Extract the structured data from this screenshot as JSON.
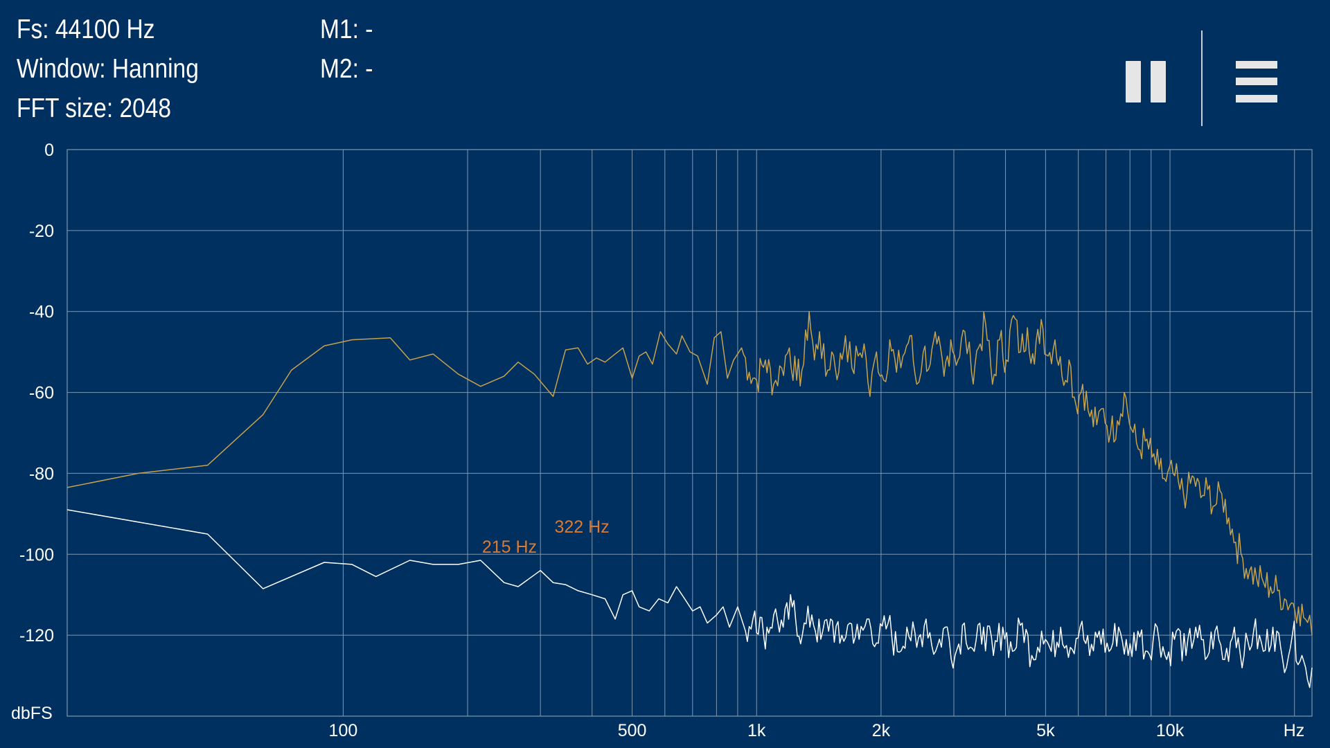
{
  "info": {
    "fs": "Fs: 44100 Hz",
    "window": "Window: Hanning",
    "fft_size": "FFT size: 2048",
    "m1": "M1: -",
    "m2": "M2: -"
  },
  "controls": {
    "pause_icon": "pause-icon",
    "menu_icon": "hamburger-menu-icon"
  },
  "colors": {
    "background": "#00305f",
    "grid": "#7f97b0",
    "series_spectrum": "#c8a24c",
    "series_floor": "#ffffff",
    "marker_label": "#d97a35"
  },
  "chart_data": {
    "type": "line",
    "xscale": "log",
    "xlim": [
      21.5,
      22050
    ],
    "ylim": [
      -140,
      0
    ],
    "ylabel": "dbFS",
    "xlabel": "Hz",
    "y_ticks": [
      {
        "value": 0,
        "label": "0"
      },
      {
        "value": -20,
        "label": "-20"
      },
      {
        "value": -40,
        "label": "-40"
      },
      {
        "value": -60,
        "label": "-60"
      },
      {
        "value": -80,
        "label": "-80"
      },
      {
        "value": -100,
        "label": "-100"
      },
      {
        "value": -120,
        "label": "-120"
      }
    ],
    "x_tick_labels": [
      {
        "value": 100,
        "label": "100"
      },
      {
        "value": 500,
        "label": "500"
      },
      {
        "value": 1000,
        "label": "1k"
      },
      {
        "value": 2000,
        "label": "2k"
      },
      {
        "value": 5000,
        "label": "5k"
      },
      {
        "value": 10000,
        "label": "10k"
      }
    ],
    "x_gridlines": [
      100,
      200,
      300,
      400,
      500,
      600,
      700,
      800,
      900,
      1000,
      2000,
      3000,
      4000,
      5000,
      6000,
      7000,
      8000,
      9000,
      10000,
      20000
    ],
    "markers": [
      {
        "label": "215 Hz",
        "x": 215,
        "y": -101
      },
      {
        "label": "322 Hz",
        "x": 322,
        "y": -96
      }
    ],
    "series": [
      {
        "color": "#c8a24c",
        "points": [
          [
            21.5,
            -83.5
          ],
          [
            32,
            -80
          ],
          [
            47,
            -78
          ],
          [
            64,
            -65.5
          ],
          [
            75,
            -54.5
          ],
          [
            90,
            -48.5
          ],
          [
            105,
            -47
          ],
          [
            130,
            -46.5
          ],
          [
            145,
            -52
          ],
          [
            165,
            -50.5
          ],
          [
            190,
            -55.5
          ],
          [
            215,
            -58.5
          ],
          [
            245,
            -56
          ],
          [
            265,
            -52.5
          ],
          [
            290,
            -55.5
          ],
          [
            322,
            -61
          ],
          [
            345,
            -49.5
          ],
          [
            370,
            -49
          ],
          [
            390,
            -53
          ],
          [
            410,
            -51.5
          ],
          [
            430,
            -52.5
          ],
          [
            455,
            -50.5
          ],
          [
            475,
            -49
          ],
          [
            500,
            -56.5
          ],
          [
            520,
            -51
          ],
          [
            540,
            -50
          ],
          [
            560,
            -53
          ],
          [
            585,
            -45
          ],
          [
            610,
            -48
          ],
          [
            640,
            -50.5
          ],
          [
            660,
            -46
          ],
          [
            690,
            -50
          ],
          [
            720,
            -51
          ],
          [
            760,
            -58
          ],
          [
            790,
            -46.5
          ],
          [
            820,
            -45
          ],
          [
            850,
            -56.5
          ],
          [
            880,
            -52
          ],
          [
            920,
            -49
          ],
          [
            960,
            -55
          ],
          [
            1000,
            -57
          ],
          [
            1050,
            -52
          ],
          [
            1100,
            -58
          ],
          [
            1150,
            -54
          ],
          [
            1200,
            -49
          ],
          [
            1250,
            -57
          ],
          [
            1300,
            -53
          ],
          [
            1340,
            -40
          ],
          [
            1380,
            -52
          ],
          [
            1420,
            -45
          ],
          [
            1470,
            -56
          ],
          [
            1520,
            -50
          ],
          [
            1580,
            -55
          ],
          [
            1640,
            -46
          ],
          [
            1700,
            -54
          ],
          [
            1760,
            -51
          ],
          [
            1820,
            -48
          ],
          [
            1880,
            -61
          ],
          [
            1950,
            -50
          ],
          [
            2030,
            -57
          ],
          [
            2100,
            -47
          ],
          [
            2180,
            -55
          ],
          [
            2260,
            -51
          ],
          [
            2350,
            -46
          ],
          [
            2440,
            -58
          ],
          [
            2530,
            -50
          ],
          [
            2630,
            -53
          ],
          [
            2730,
            -48
          ],
          [
            2840,
            -56
          ],
          [
            2950,
            -47
          ],
          [
            3070,
            -52
          ],
          [
            3190,
            -45
          ],
          [
            3310,
            -55
          ],
          [
            3440,
            -49
          ],
          [
            3580,
            -43
          ],
          [
            3720,
            -58
          ],
          [
            3870,
            -47
          ],
          [
            4020,
            -52
          ],
          [
            4180,
            -41
          ],
          [
            4350,
            -50
          ],
          [
            4520,
            -44
          ],
          [
            4700,
            -53
          ],
          [
            4880,
            -42
          ],
          [
            5070,
            -51
          ],
          [
            5270,
            -47
          ],
          [
            5480,
            -56
          ],
          [
            5700,
            -52
          ],
          [
            5920,
            -63
          ],
          [
            6150,
            -58
          ],
          [
            6400,
            -66
          ],
          [
            6650,
            -68
          ],
          [
            6900,
            -64
          ],
          [
            7180,
            -70
          ],
          [
            7460,
            -67
          ],
          [
            7750,
            -60
          ],
          [
            8060,
            -69
          ],
          [
            8380,
            -74
          ],
          [
            8710,
            -72
          ],
          [
            9050,
            -76
          ],
          [
            9410,
            -79
          ],
          [
            9780,
            -82
          ],
          [
            10170,
            -80
          ],
          [
            10570,
            -84
          ],
          [
            10990,
            -85
          ],
          [
            11420,
            -81
          ],
          [
            11870,
            -86
          ],
          [
            12340,
            -84
          ],
          [
            12830,
            -88
          ],
          [
            13340,
            -85
          ],
          [
            13870,
            -91
          ],
          [
            14420,
            -97
          ],
          [
            14990,
            -101
          ],
          [
            15580,
            -104
          ],
          [
            16200,
            -106
          ],
          [
            16840,
            -107
          ],
          [
            17500,
            -108
          ],
          [
            18200,
            -109
          ],
          [
            18920,
            -111
          ],
          [
            19670,
            -112
          ],
          [
            20450,
            -113
          ],
          [
            21260,
            -116
          ],
          [
            22050,
            -120
          ]
        ]
      },
      {
        "color": "#ffffff",
        "points": [
          [
            21.5,
            -89
          ],
          [
            47,
            -95
          ],
          [
            64,
            -108.5
          ],
          [
            90,
            -102
          ],
          [
            105,
            -102.5
          ],
          [
            120,
            -105.5
          ],
          [
            145,
            -101.5
          ],
          [
            165,
            -102.5
          ],
          [
            190,
            -102.5
          ],
          [
            215,
            -101.5
          ],
          [
            245,
            -107
          ],
          [
            265,
            -108
          ],
          [
            300,
            -104
          ],
          [
            322,
            -107
          ],
          [
            345,
            -107.5
          ],
          [
            370,
            -109
          ],
          [
            400,
            -110
          ],
          [
            430,
            -111
          ],
          [
            455,
            -116
          ],
          [
            475,
            -110
          ],
          [
            500,
            -109
          ],
          [
            520,
            -113
          ],
          [
            550,
            -114
          ],
          [
            580,
            -111
          ],
          [
            610,
            -112
          ],
          [
            640,
            -108
          ],
          [
            670,
            -111
          ],
          [
            700,
            -114
          ],
          [
            730,
            -113
          ],
          [
            760,
            -117
          ],
          [
            800,
            -115
          ],
          [
            830,
            -113
          ],
          [
            860,
            -118
          ],
          [
            900,
            -113
          ],
          [
            940,
            -119
          ],
          [
            990,
            -114
          ],
          [
            1040,
            -120
          ],
          [
            1100,
            -115
          ],
          [
            1160,
            -118
          ],
          [
            1220,
            -113
          ],
          [
            1290,
            -120
          ],
          [
            1360,
            -115
          ],
          [
            1430,
            -121
          ],
          [
            1510,
            -116
          ],
          [
            1590,
            -122
          ],
          [
            1680,
            -117
          ],
          [
            1770,
            -121
          ],
          [
            1870,
            -116
          ],
          [
            1970,
            -122
          ],
          [
            2080,
            -117
          ],
          [
            2190,
            -124
          ],
          [
            2310,
            -118
          ],
          [
            2440,
            -123
          ],
          [
            2570,
            -116
          ],
          [
            2710,
            -124
          ],
          [
            2860,
            -118
          ],
          [
            3020,
            -125
          ],
          [
            3180,
            -117
          ],
          [
            3360,
            -124
          ],
          [
            3540,
            -118
          ],
          [
            3740,
            -125
          ],
          [
            3940,
            -118
          ],
          [
            4160,
            -124
          ],
          [
            4390,
            -117
          ],
          [
            4630,
            -125
          ],
          [
            4890,
            -119
          ],
          [
            5160,
            -124
          ],
          [
            5440,
            -118
          ],
          [
            5740,
            -123
          ],
          [
            6060,
            -118
          ],
          [
            6390,
            -125
          ],
          [
            6740,
            -119
          ],
          [
            7120,
            -124
          ],
          [
            7510,
            -118
          ],
          [
            7920,
            -125
          ],
          [
            8360,
            -119
          ],
          [
            8820,
            -124
          ],
          [
            9310,
            -118
          ],
          [
            9820,
            -126
          ],
          [
            10360,
            -119
          ],
          [
            10930,
            -125
          ],
          [
            11540,
            -118
          ],
          [
            12170,
            -126
          ],
          [
            12850,
            -119
          ],
          [
            13560,
            -126
          ],
          [
            14310,
            -118
          ],
          [
            15100,
            -125
          ],
          [
            15930,
            -119
          ],
          [
            16810,
            -124
          ],
          [
            17740,
            -118
          ],
          [
            18720,
            -126
          ],
          [
            19760,
            -120
          ],
          [
            20850,
            -125
          ],
          [
            21500,
            -131
          ],
          [
            22050,
            -128
          ]
        ]
      }
    ]
  }
}
